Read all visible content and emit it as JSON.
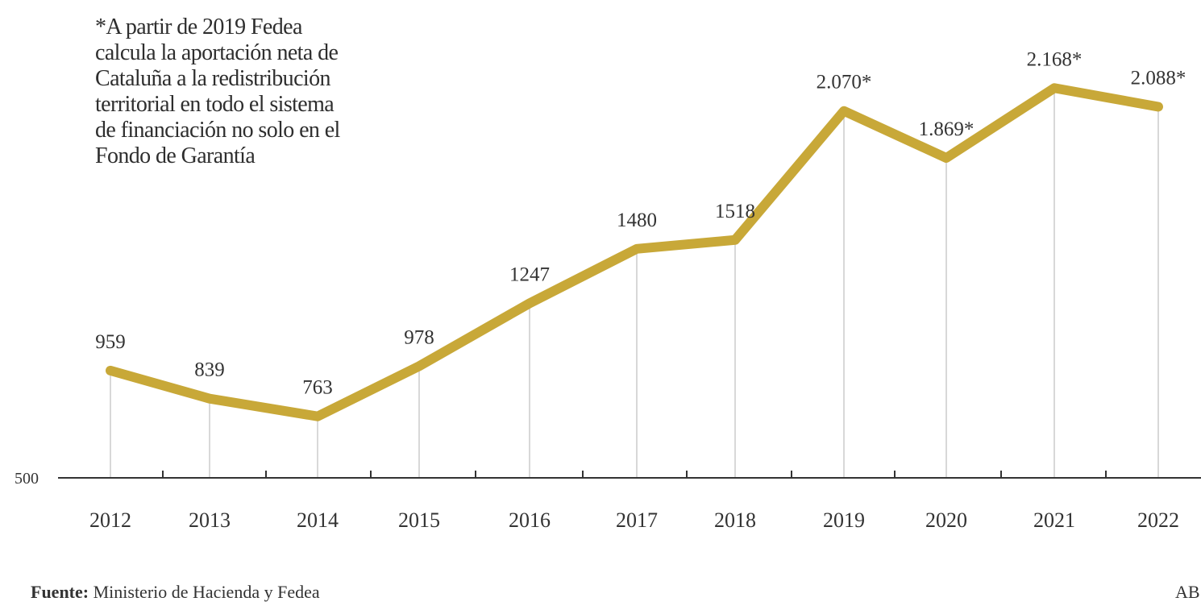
{
  "chart_data": {
    "type": "line",
    "categories": [
      "2012",
      "2013",
      "2014",
      "2015",
      "2016",
      "2017",
      "2018",
      "2019",
      "2020",
      "2021",
      "2022"
    ],
    "values": [
      959,
      839,
      763,
      978,
      1247,
      1480,
      1518,
      2070,
      1869,
      2168,
      2088
    ],
    "data_labels": [
      "959",
      "839",
      "763",
      "978",
      "1247",
      "1480",
      "1518",
      "2.070*",
      "1.869*",
      "2.168*",
      "2.088*"
    ],
    "y_tick_labels": [
      "500"
    ],
    "ylim": [
      500,
      2250
    ],
    "grid": false,
    "line_color": "#c8a838",
    "axis_color": "#333333",
    "dropline_color": "#cccccc"
  },
  "note_lines": [
    "*A partir de 2019 Fedea",
    "calcula la aportación neta de",
    "Cataluña a la redistribución",
    "territorial en todo el sistema",
    "de financiación no solo en el",
    "Fondo de Garantía"
  ],
  "source": {
    "label": "Fuente:",
    "text": "Ministerio de Hacienda y Fedea"
  },
  "credit": "AB"
}
